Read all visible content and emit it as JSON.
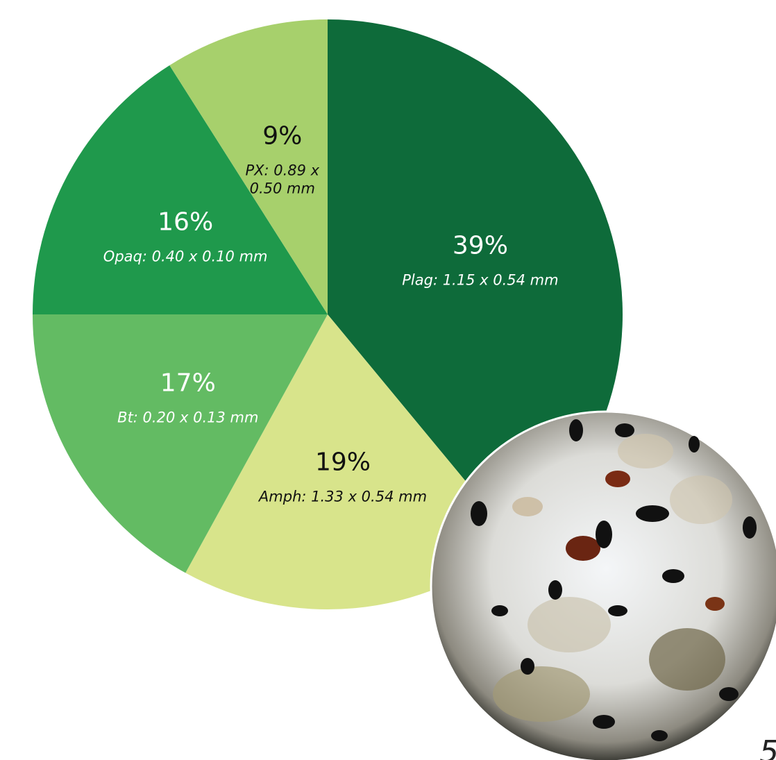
{
  "chart_data": {
    "type": "pie",
    "categories": [
      "Plag: 1.15 x 0.54 mm",
      "Amph: 1.33 x 0.54 mm",
      "Bt: 0.20 x 0.13 mm",
      "Opaq: 0.40 x 0.10 mm",
      "PX: 0.89 x 0.50 mm"
    ],
    "values": [
      39,
      19,
      17,
      16,
      9
    ],
    "value_labels": [
      "39%",
      "19%",
      "17%",
      "16%",
      "9%"
    ],
    "colors": [
      "#0e6b3a",
      "#d8e48b",
      "#63bb63",
      "#1f994c",
      "#a7d06c"
    ]
  },
  "page_number": "5"
}
